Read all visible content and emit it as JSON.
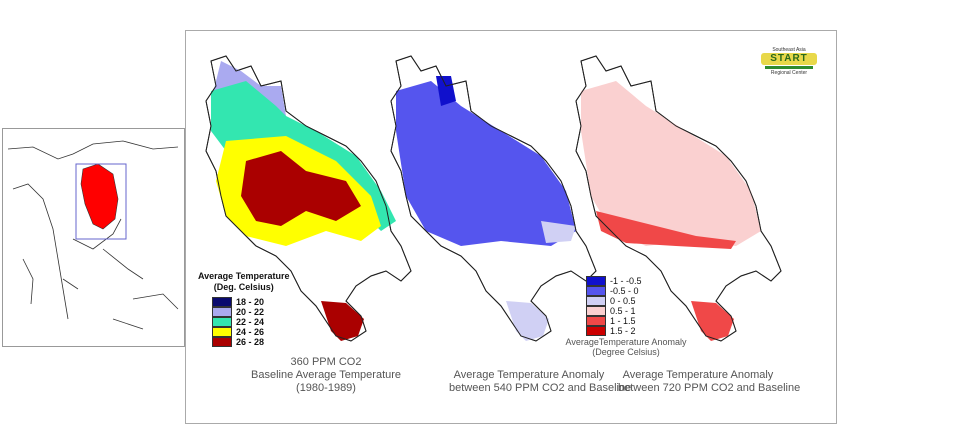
{
  "logo": {
    "line1": "Southeast Asia",
    "name": "START",
    "line3": "Regional Center"
  },
  "maps": [
    {
      "caption": [
        "360 PPM CO2",
        "Baseline Average Temperature",
        "(1980-1989)"
      ]
    },
    {
      "caption": [
        "Average Temperature Anomaly",
        "between 540 PPM CO2 and Baseline"
      ]
    },
    {
      "caption": [
        "Average Temperature Anomaly",
        "between 720 PPM CO2 and Baseline"
      ]
    }
  ],
  "legend_baseline": {
    "title": [
      "Average Temperature",
      "(Deg. Celsius)"
    ],
    "items": [
      {
        "label": "18 - 20",
        "color": "#0a0a6e"
      },
      {
        "label": "20 - 22",
        "color": "#aaaaf0"
      },
      {
        "label": "22 - 24",
        "color": "#33e6b0"
      },
      {
        "label": "24 - 26",
        "color": "#ffff00"
      },
      {
        "label": "26 - 28",
        "color": "#aa0000"
      }
    ]
  },
  "legend_anomaly": {
    "title": [
      "AverageTemperature Anomaly",
      "(Degree Celsius)"
    ],
    "items": [
      {
        "label": "-1 - -0.5",
        "color": "#1010cc"
      },
      {
        "label": "-0.5 - 0",
        "color": "#5555ee"
      },
      {
        "label": "0 - 0.5",
        "color": "#d0d0f4"
      },
      {
        "label": "0.5 - 1",
        "color": "#fad0d0"
      },
      {
        "label": "1 - 1.5",
        "color": "#f04848"
      },
      {
        "label": "1.5 - 2",
        "color": "#cc0000"
      }
    ]
  }
}
